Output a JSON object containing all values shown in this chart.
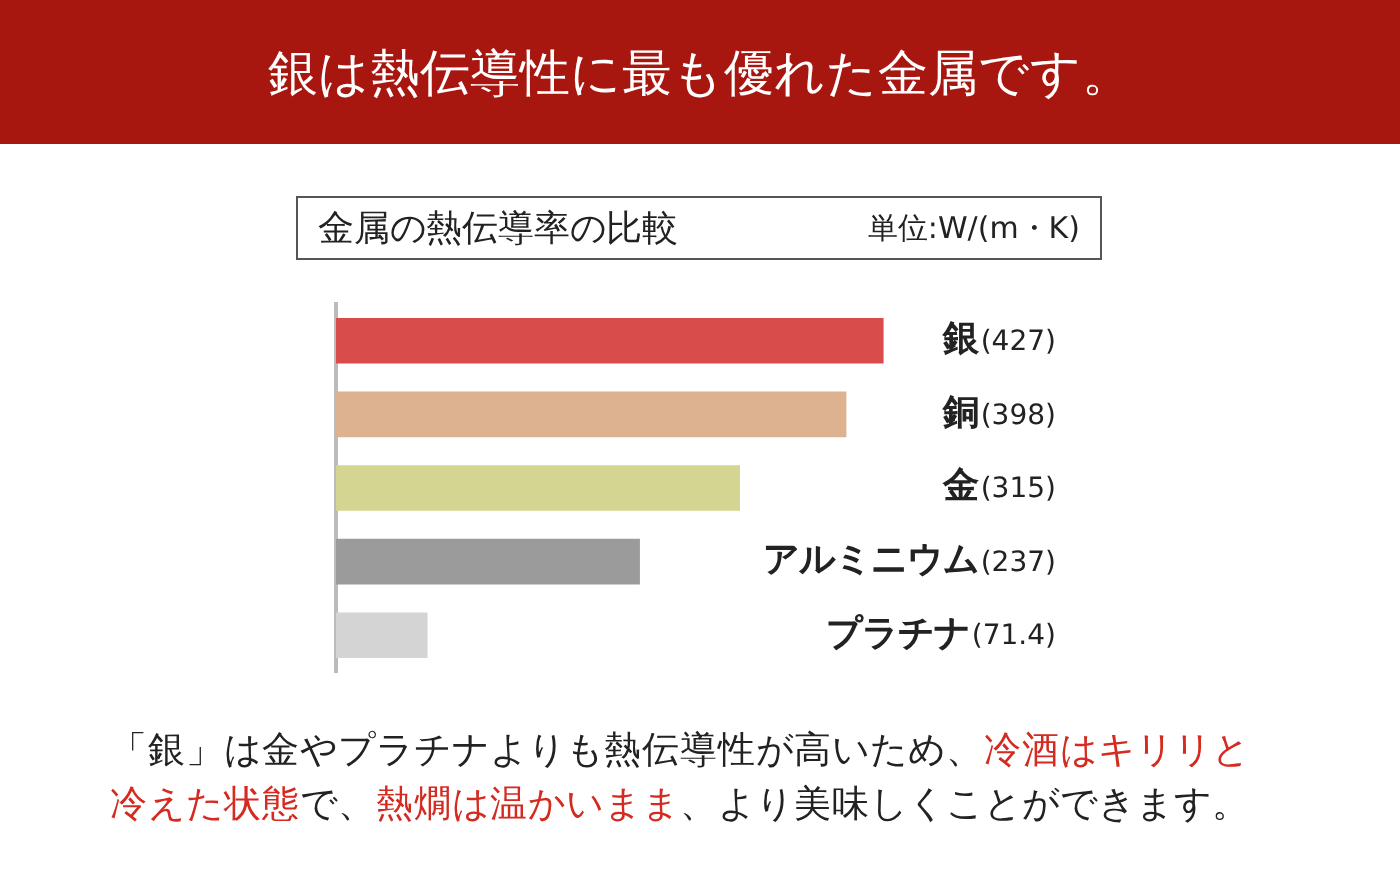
{
  "chart_data": {
    "type": "bar",
    "orientation": "horizontal",
    "title": "銀は熱伝導性に最も優れた金属です。",
    "subtitle": "金属の熱伝導率の比較",
    "xlabel": "単位:W/(m・K)",
    "categories": [
      "銀",
      "銅",
      "金",
      "アルミニウム",
      "プラチナ"
    ],
    "values": [
      427,
      398,
      315,
      237,
      71.4
    ],
    "colors": [
      "#d94c4c",
      "#dcb290",
      "#d4d590",
      "#9b9b9b",
      "#d4d4d4"
    ],
    "value_labels": [
      "(427)",
      "(398)",
      "(315)",
      "(237)",
      "(71.4)"
    ],
    "legend": false,
    "annotations": [
      "「銀」は金やプラチナよりも熱伝導性が高いため、",
      "冷酒はキリリと冷えた状態",
      "で、",
      "熱燗は温かいまま",
      "、より美味しくことができます。"
    ]
  }
}
